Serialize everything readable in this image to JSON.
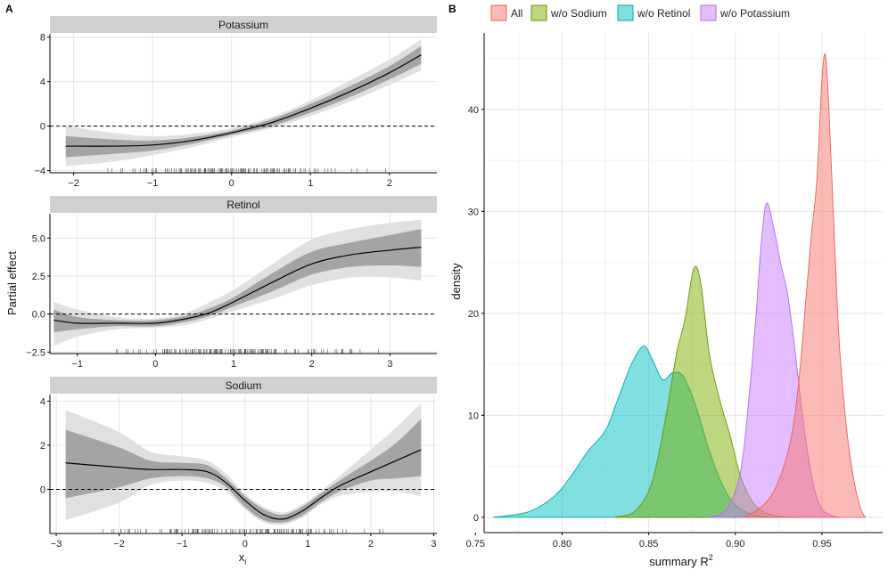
{
  "panel_a": {
    "tag": "A",
    "ylabel": "Partial effect",
    "xlabel": "x",
    "xlabel_sub": "i",
    "zero_line": 0,
    "chart_data": [
      {
        "type": "line",
        "title": "Potassium",
        "xlim": [
          -2.3,
          2.6
        ],
        "ylim": [
          -4.2,
          8.3
        ],
        "xticks": [
          -2,
          -1,
          0,
          1,
          2
        ],
        "yticks": [
          -4,
          0,
          4,
          8
        ],
        "ytick_labels": [
          "−4",
          "0",
          "4",
          "8"
        ],
        "xtick_labels": [
          "−2",
          "−1",
          "0",
          "1",
          "2"
        ],
        "x": [
          -2.1,
          -1.5,
          -1.0,
          -0.5,
          0.0,
          0.5,
          1.0,
          1.5,
          2.0,
          2.4
        ],
        "y": [
          -1.8,
          -1.8,
          -1.7,
          -1.3,
          -0.6,
          0.3,
          1.6,
          3.1,
          4.8,
          6.4
        ],
        "inner_band": {
          "lower": [
            -2.8,
            -2.5,
            -2.2,
            -1.6,
            -0.8,
            0.0,
            1.2,
            2.6,
            4.2,
            5.6
          ],
          "upper": [
            -0.9,
            -1.2,
            -1.3,
            -1.0,
            -0.4,
            0.6,
            2.0,
            3.6,
            5.4,
            7.2
          ]
        },
        "outer_band": {
          "lower": [
            -3.6,
            -3.2,
            -2.6,
            -1.9,
            -1.0,
            -0.2,
            0.9,
            2.2,
            3.7,
            5.0
          ],
          "upper": [
            0.0,
            -0.6,
            -0.9,
            -0.7,
            -0.2,
            0.8,
            2.3,
            4.1,
            6.0,
            7.8
          ]
        },
        "rug_range": [
          -2.0,
          2.3
        ]
      },
      {
        "type": "line",
        "title": "Retinol",
        "xlim": [
          -1.35,
          3.6
        ],
        "ylim": [
          -2.6,
          6.6
        ],
        "xticks": [
          -1,
          0,
          1,
          2,
          3
        ],
        "yticks": [
          -2.5,
          0,
          2.5,
          5
        ],
        "ytick_labels": [
          "−2.5",
          "0.0",
          "2.5",
          "5.0"
        ],
        "xtick_labels": [
          "−1",
          "0",
          "1",
          "2",
          "3"
        ],
        "x": [
          -1.3,
          -1.0,
          -0.5,
          0.0,
          0.4,
          0.7,
          1.0,
          1.5,
          2.0,
          2.5,
          3.0,
          3.4
        ],
        "y": [
          -0.4,
          -0.6,
          -0.6,
          -0.6,
          -0.3,
          0.1,
          0.8,
          2.1,
          3.3,
          3.9,
          4.2,
          4.4
        ],
        "inner_band": {
          "lower": [
            -1.2,
            -1.0,
            -0.8,
            -0.8,
            -0.5,
            -0.1,
            0.5,
            1.5,
            2.6,
            3.1,
            3.2,
            3.1
          ],
          "upper": [
            0.3,
            -0.2,
            -0.4,
            -0.4,
            -0.1,
            0.4,
            1.1,
            2.7,
            4.1,
            4.7,
            5.2,
            5.6
          ]
        },
        "outer_band": {
          "lower": [
            -2.1,
            -1.5,
            -1.0,
            -0.9,
            -0.7,
            -0.3,
            0.2,
            1.0,
            1.9,
            2.4,
            2.4,
            2.2
          ],
          "upper": [
            0.8,
            0.3,
            -0.2,
            -0.3,
            0.1,
            0.8,
            1.6,
            3.3,
            4.9,
            5.6,
            6.0,
            6.2
          ]
        },
        "rug_range": [
          -1.1,
          3.3
        ]
      },
      {
        "type": "line",
        "title": "Sodium",
        "xlim": [
          -3.1,
          3.05
        ],
        "ylim": [
          -2.0,
          4.3
        ],
        "xticks": [
          -3,
          -2,
          -1,
          0,
          1,
          2,
          3
        ],
        "yticks": [
          0,
          2,
          4
        ],
        "ytick_labels": [
          "0",
          "2",
          "4"
        ],
        "xtick_labels": [
          "−3",
          "−2",
          "−1",
          "0",
          "1",
          "2",
          "3"
        ],
        "x": [
          -2.85,
          -2.0,
          -1.5,
          -1.0,
          -0.6,
          -0.3,
          0.0,
          0.3,
          0.6,
          0.9,
          1.2,
          1.5,
          2.0,
          2.4,
          2.8
        ],
        "y": [
          1.2,
          1.0,
          0.9,
          0.9,
          0.8,
          0.3,
          -0.5,
          -1.15,
          -1.35,
          -1.0,
          -0.4,
          0.15,
          0.8,
          1.3,
          1.8
        ],
        "inner_band": {
          "lower": [
            -0.4,
            0.1,
            0.5,
            0.6,
            0.5,
            0.1,
            -0.8,
            -1.4,
            -1.5,
            -1.2,
            -0.6,
            -0.1,
            0.4,
            0.5,
            0.6
          ],
          "upper": [
            2.7,
            1.9,
            1.3,
            1.2,
            1.1,
            0.5,
            -0.3,
            -0.9,
            -1.15,
            -0.8,
            -0.2,
            0.4,
            1.3,
            2.1,
            3.2
          ]
        },
        "outer_band": {
          "lower": [
            -1.4,
            -0.6,
            0.2,
            0.4,
            0.3,
            -0.1,
            -0.9,
            -1.5,
            -1.6,
            -1.3,
            -0.7,
            -0.3,
            -0.1,
            -0.1,
            -0.3
          ],
          "upper": [
            3.6,
            2.6,
            1.7,
            1.5,
            1.3,
            0.7,
            -0.2,
            -0.8,
            -1.05,
            -0.7,
            -0.1,
            0.6,
            1.8,
            2.8,
            3.9
          ]
        },
        "rug_range": [
          -2.8,
          2.8
        ]
      }
    ]
  },
  "panel_b": {
    "tag": "B",
    "chart_data": {
      "type": "area",
      "title": "",
      "xlabel": "summary R",
      "xlabel_sup": "2",
      "ylabel": "density",
      "xlim": [
        0.755,
        0.985
      ],
      "ylim": [
        -1.5,
        47.5
      ],
      "xticks": [
        0.75,
        0.8,
        0.85,
        0.9,
        0.95
      ],
      "xtick_labels": [
        "0.75",
        "0.80",
        "0.85",
        "0.90",
        "0.95"
      ],
      "yticks": [
        0,
        10,
        20,
        30,
        40
      ],
      "ytick_labels": [
        "0",
        "10",
        "20",
        "30",
        "40"
      ],
      "series": [
        {
          "name": "w/o Retinol",
          "fill": "#00BFC4",
          "stroke": "#00A9AE",
          "x": [
            0.76,
            0.78,
            0.795,
            0.805,
            0.815,
            0.825,
            0.832,
            0.84,
            0.847,
            0.852,
            0.858,
            0.864,
            0.87,
            0.877,
            0.885,
            0.893,
            0.9,
            0.908,
            0.915,
            0.92
          ],
          "y": [
            0.0,
            0.5,
            2.0,
            4.0,
            6.5,
            8.5,
            11.5,
            15.0,
            16.8,
            15.5,
            13.5,
            14.2,
            13.8,
            11.0,
            6.5,
            3.0,
            1.2,
            0.4,
            0.1,
            0.0
          ]
        },
        {
          "name": "w/o Sodium",
          "fill": "#7CAE00",
          "stroke": "#6B9600",
          "x": [
            0.83,
            0.842,
            0.852,
            0.86,
            0.866,
            0.871,
            0.876,
            0.88,
            0.885,
            0.891,
            0.897,
            0.903,
            0.91,
            0.918,
            0.926,
            0.935
          ],
          "y": [
            0.0,
            0.6,
            3.5,
            10.0,
            16.0,
            19.5,
            24.4,
            23.0,
            16.0,
            11.5,
            8.0,
            4.0,
            1.5,
            0.4,
            0.1,
            0.0
          ]
        },
        {
          "name": "w/o Potassium",
          "fill": "#C77CFF",
          "stroke": "#B06BE8",
          "x": [
            0.885,
            0.895,
            0.903,
            0.908,
            0.912,
            0.915,
            0.918,
            0.922,
            0.926,
            0.93,
            0.934,
            0.938,
            0.942,
            0.946,
            0.95,
            0.955,
            0.96
          ],
          "y": [
            0.0,
            0.8,
            4.5,
            12.0,
            20.0,
            27.0,
            30.8,
            28.5,
            25.0,
            22.0,
            17.0,
            11.0,
            6.0,
            2.5,
            0.8,
            0.2,
            0.0
          ]
        },
        {
          "name": "All",
          "fill": "#F8766D",
          "stroke": "#E8625A",
          "x": [
            0.905,
            0.915,
            0.922,
            0.928,
            0.933,
            0.937,
            0.941,
            0.944,
            0.947,
            0.95,
            0.952,
            0.954,
            0.957,
            0.96,
            0.964,
            0.968,
            0.972,
            0.975
          ],
          "y": [
            0.0,
            1.0,
            2.5,
            5.0,
            8.5,
            14.0,
            22.0,
            28.0,
            33.0,
            43.0,
            45.3,
            40.0,
            28.0,
            17.0,
            9.0,
            4.0,
            1.0,
            0.0
          ]
        }
      ]
    },
    "legend": [
      {
        "label": "All",
        "fill": "#F8766D",
        "stroke": "#E8625A"
      },
      {
        "label": "w/o Sodium",
        "fill": "#7CAE00",
        "stroke": "#6B9600"
      },
      {
        "label": "w/o Retinol",
        "fill": "#00BFC4",
        "stroke": "#00A9AE"
      },
      {
        "label": "w/o Potassium",
        "fill": "#C77CFF",
        "stroke": "#B06BE8"
      }
    ]
  }
}
